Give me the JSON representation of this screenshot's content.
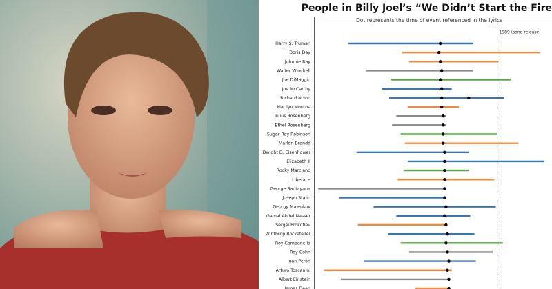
{
  "chart_data": {
    "type": "range",
    "title": "People in Billy Joel’s “We Didn’t Start the Fire”",
    "subtitle": "Dot represents the time of event referenced in the lyrics",
    "categories": [
      "Harry S. Truman",
      "Doris Day",
      "Johnnie Ray",
      "Walter Winchell",
      "Joe DiMaggio",
      "Joe McCarthy",
      "Richard Nixon",
      "Marilyn Monroe",
      "Julius Rosenberg",
      "Ethel Rosenberg",
      "Sugar Ray Robinson",
      "Marlon Brando",
      "Dwight D. Eisenhower",
      "Elizabeth II",
      "Rocky Marciano",
      "Liberace",
      "George Santayana",
      "Joseph Stalin",
      "Georgy Malenkov",
      "Gamal Abdel Nasser",
      "Sergei Prokofiev",
      "Winthrop Rockefeller",
      "Roy Campanella",
      "Roy Cohn",
      "Juan Perón",
      "Arturo Toscanini",
      "Albert Einstein",
      "James Dean"
    ],
    "start": [
      1884,
      1922,
      1927,
      1897,
      1914,
      1908,
      1913,
      1926,
      1918,
      1915,
      1921,
      1924,
      1890,
      1926,
      1923,
      1919,
      1863,
      1878,
      1902,
      1918,
      1891,
      1912,
      1921,
      1927,
      1895,
      1867,
      1879,
      1931
    ],
    "end": [
      1972,
      2019,
      1990,
      1972,
      1999,
      1957,
      1994,
      1962,
      1953,
      1953,
      1989,
      2004,
      1969,
      2022,
      1969,
      1987,
      1952,
      1953,
      1988,
      1970,
      1953,
      1973,
      1993,
      1986,
      1974,
      1957,
      1955,
      1955
    ],
    "events": [
      [
        1949
      ],
      [
        1948
      ],
      [
        1949
      ],
      [
        1950
      ],
      [
        1949
      ],
      [
        1950
      ],
      [
        1950,
        1969
      ],
      [
        1950
      ],
      [
        1951
      ],
      [
        1951
      ],
      [
        1951
      ],
      [
        1951
      ],
      [
        1952
      ],
      [
        1952
      ],
      [
        1952
      ],
      [
        1952
      ],
      [
        1952
      ],
      [
        1952
      ],
      [
        1953
      ],
      [
        1952
      ],
      [
        1953
      ],
      [
        1954
      ],
      [
        1953
      ],
      [
        1954
      ],
      [
        1955
      ],
      [
        1954
      ],
      [
        1955
      ],
      [
        1955
      ]
    ],
    "colors": [
      "#3a75b0",
      "#ef8a3c",
      "#ef8a3c",
      "#888888",
      "#5aa547",
      "#3a75b0",
      "#3a75b0",
      "#ef8a3c",
      "#888888",
      "#888888",
      "#5aa547",
      "#ef8a3c",
      "#3a75b0",
      "#3a75b0",
      "#5aa547",
      "#ef8a3c",
      "#888888",
      "#3a75b0",
      "#3a75b0",
      "#3a75b0",
      "#ef8a3c",
      "#3a75b0",
      "#5aa547",
      "#888888",
      "#3a75b0",
      "#ef8a3c",
      "#888888",
      "#ef8a3c"
    ],
    "xlim": [
      1860,
      2023
    ],
    "reference_line": {
      "value": 1989,
      "label": "1989 (song release)"
    }
  }
}
